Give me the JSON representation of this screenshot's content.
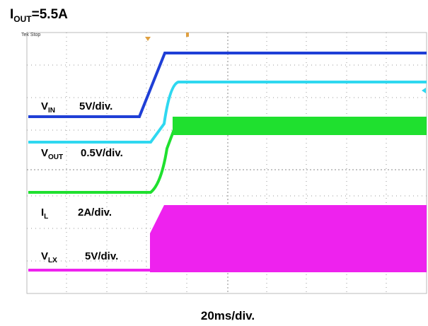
{
  "title": {
    "base": "I",
    "sub": "OUT",
    "rest": "=5.5A"
  },
  "status": "Tek Stop",
  "channels": [
    {
      "base": "V",
      "sub": "IN",
      "scale": "5V/div."
    },
    {
      "base": "V",
      "sub": "OUT",
      "scale": "0.5V/div."
    },
    {
      "base": "I",
      "sub": "L",
      "scale": "2A/div."
    },
    {
      "base": "V",
      "sub": "LX",
      "scale": "5V/div."
    }
  ],
  "timebase": "20ms/div."
}
